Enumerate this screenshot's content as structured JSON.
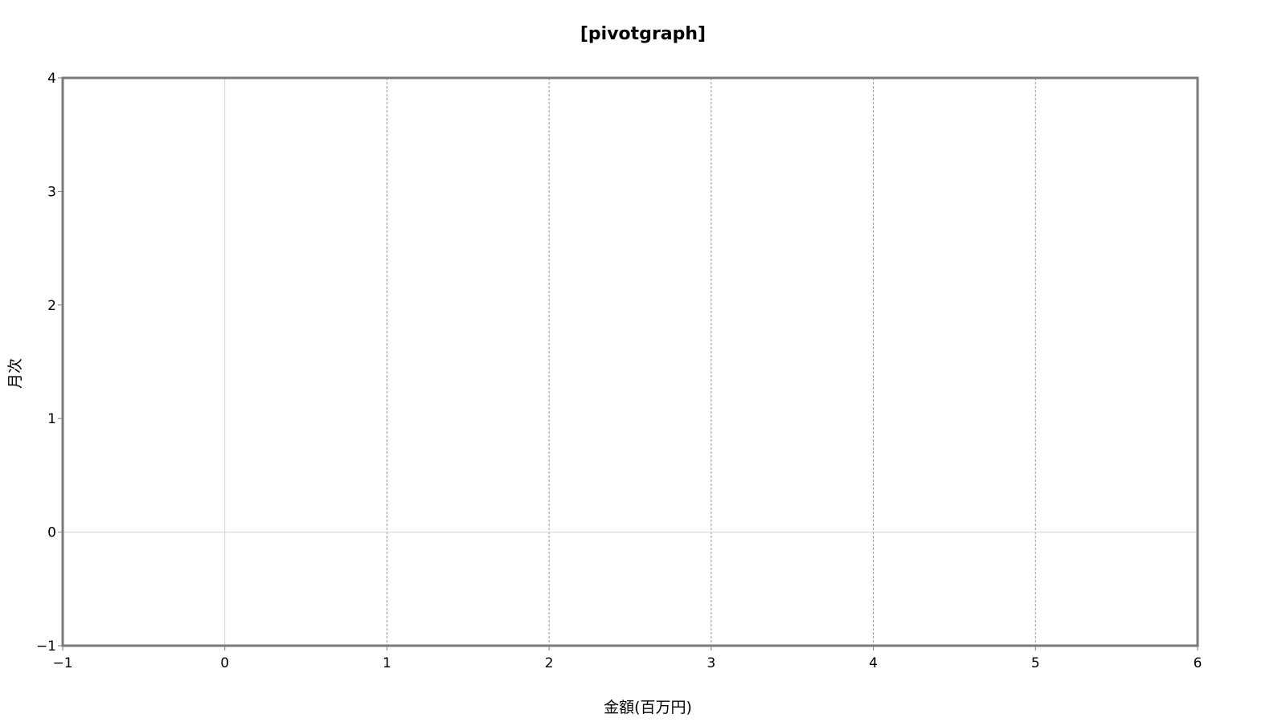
{
  "chart_data": {
    "type": "scatter",
    "title": "[pivotgraph]",
    "xlabel": "金額(百万円)",
    "ylabel": "月次",
    "xlim": [
      -1,
      6
    ],
    "ylim": [
      -1,
      4
    ],
    "x_ticks": [
      -1,
      0,
      1,
      2,
      3,
      4,
      5,
      6
    ],
    "x_tick_labels": [
      "−1",
      "0",
      "1",
      "2",
      "3",
      "4",
      "5",
      "6"
    ],
    "y_ticks": [
      -1,
      0,
      1,
      2,
      3,
      4
    ],
    "y_tick_labels": [
      "−1",
      "0",
      "1",
      "2",
      "3",
      "4"
    ],
    "grid": true,
    "series": []
  },
  "colors": {
    "frame": "#7a7a7a",
    "zero_line": "#d0d0d0",
    "grid_dashed": "#9a9a9a",
    "background": "#ffffff"
  }
}
